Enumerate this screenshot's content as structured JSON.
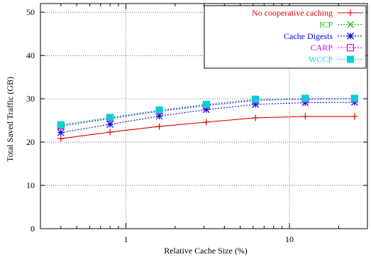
{
  "chart_data": {
    "type": "line",
    "title": "",
    "xlabel": "Relative Cache Size (%)",
    "ylabel": "Total Saved Traffic (GB)",
    "xscale": "log",
    "xlim": [
      0.3,
      30
    ],
    "ylim": [
      0,
      52
    ],
    "x_ticks": [
      1,
      10
    ],
    "x_tick_labels": [
      "1",
      "10"
    ],
    "y_ticks": [
      0,
      10,
      20,
      30,
      40,
      50
    ],
    "y_tick_labels": [
      "0",
      "10",
      "20",
      "30",
      "40",
      "50"
    ],
    "grid": true,
    "legend_position": "top-right",
    "x": [
      0.4,
      0.8,
      1.6,
      3.1,
      6.2,
      12.5,
      25
    ],
    "series": [
      {
        "name": "No cooperative caching",
        "marker": "plus",
        "color": "#e00000",
        "dashed": false,
        "values": [
          20.8,
          22.3,
          23.6,
          24.6,
          25.6,
          25.9,
          25.9
        ]
      },
      {
        "name": "ICP",
        "marker": "x",
        "color": "#00c000",
        "dashed": true,
        "values": [
          23.6,
          25.4,
          27.1,
          28.4,
          29.6,
          29.9,
          30.0
        ]
      },
      {
        "name": "Cache Digests",
        "marker": "star",
        "color": "#0000e0",
        "dashed": true,
        "values": [
          22.2,
          24.1,
          26.0,
          27.5,
          28.7,
          29.1,
          29.2
        ]
      },
      {
        "name": "CARP",
        "marker": "square-open",
        "color": "#e000e0",
        "dashed": true,
        "values": [
          23.8,
          25.5,
          27.2,
          28.5,
          29.7,
          29.9,
          30.0
        ]
      },
      {
        "name": "WCCP",
        "marker": "square-filled",
        "color": "#00d0d8",
        "dashed": true,
        "values": [
          24.0,
          25.7,
          27.4,
          28.7,
          29.9,
          30.1,
          30.1
        ]
      }
    ]
  }
}
